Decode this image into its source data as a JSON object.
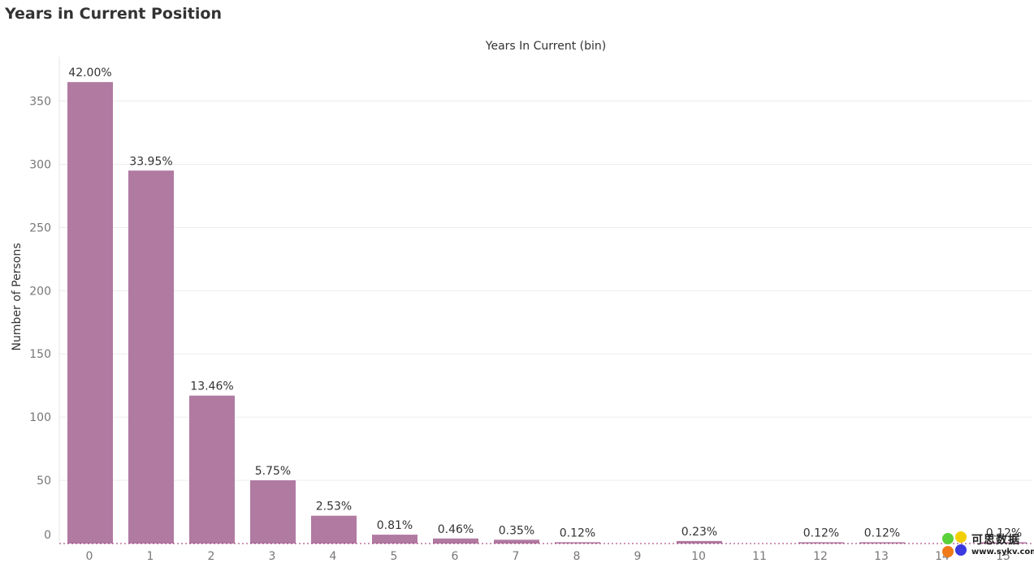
{
  "header": {
    "title": "Years in Current Position"
  },
  "chart_data": {
    "type": "bar",
    "title": "Years in Current Position",
    "xlabel": "Years In Current (bin)",
    "ylabel": "Number of Persons",
    "categories": [
      "0",
      "1",
      "2",
      "3",
      "4",
      "5",
      "6",
      "7",
      "8",
      "9",
      "10",
      "11",
      "12",
      "13",
      "14",
      "15"
    ],
    "values": [
      365,
      295,
      117,
      50,
      22,
      7,
      4,
      3,
      1,
      0,
      2,
      0,
      1,
      1,
      0,
      1
    ],
    "labels": [
      "42.00%",
      "33.95%",
      "13.46%",
      "5.75%",
      "2.53%",
      "0.81%",
      "0.46%",
      "0.35%",
      "0.12%",
      "",
      "0.23%",
      "",
      "0.12%",
      "0.12%",
      "",
      "0.12%"
    ],
    "yticks": [
      0,
      50,
      100,
      150,
      200,
      250,
      300,
      350
    ],
    "ylim": [
      0,
      385
    ],
    "grid": true,
    "colors": {
      "bar": "#b07aa1",
      "grid": "#ececec",
      "axis_text": "#777777",
      "label_text": "#333333"
    }
  },
  "watermark": {
    "text": "可思数据",
    "url": "www.sykv.com",
    "colors": [
      "#5ad13a",
      "#f2d000",
      "#f07a1a",
      "#3a3ae0"
    ]
  }
}
